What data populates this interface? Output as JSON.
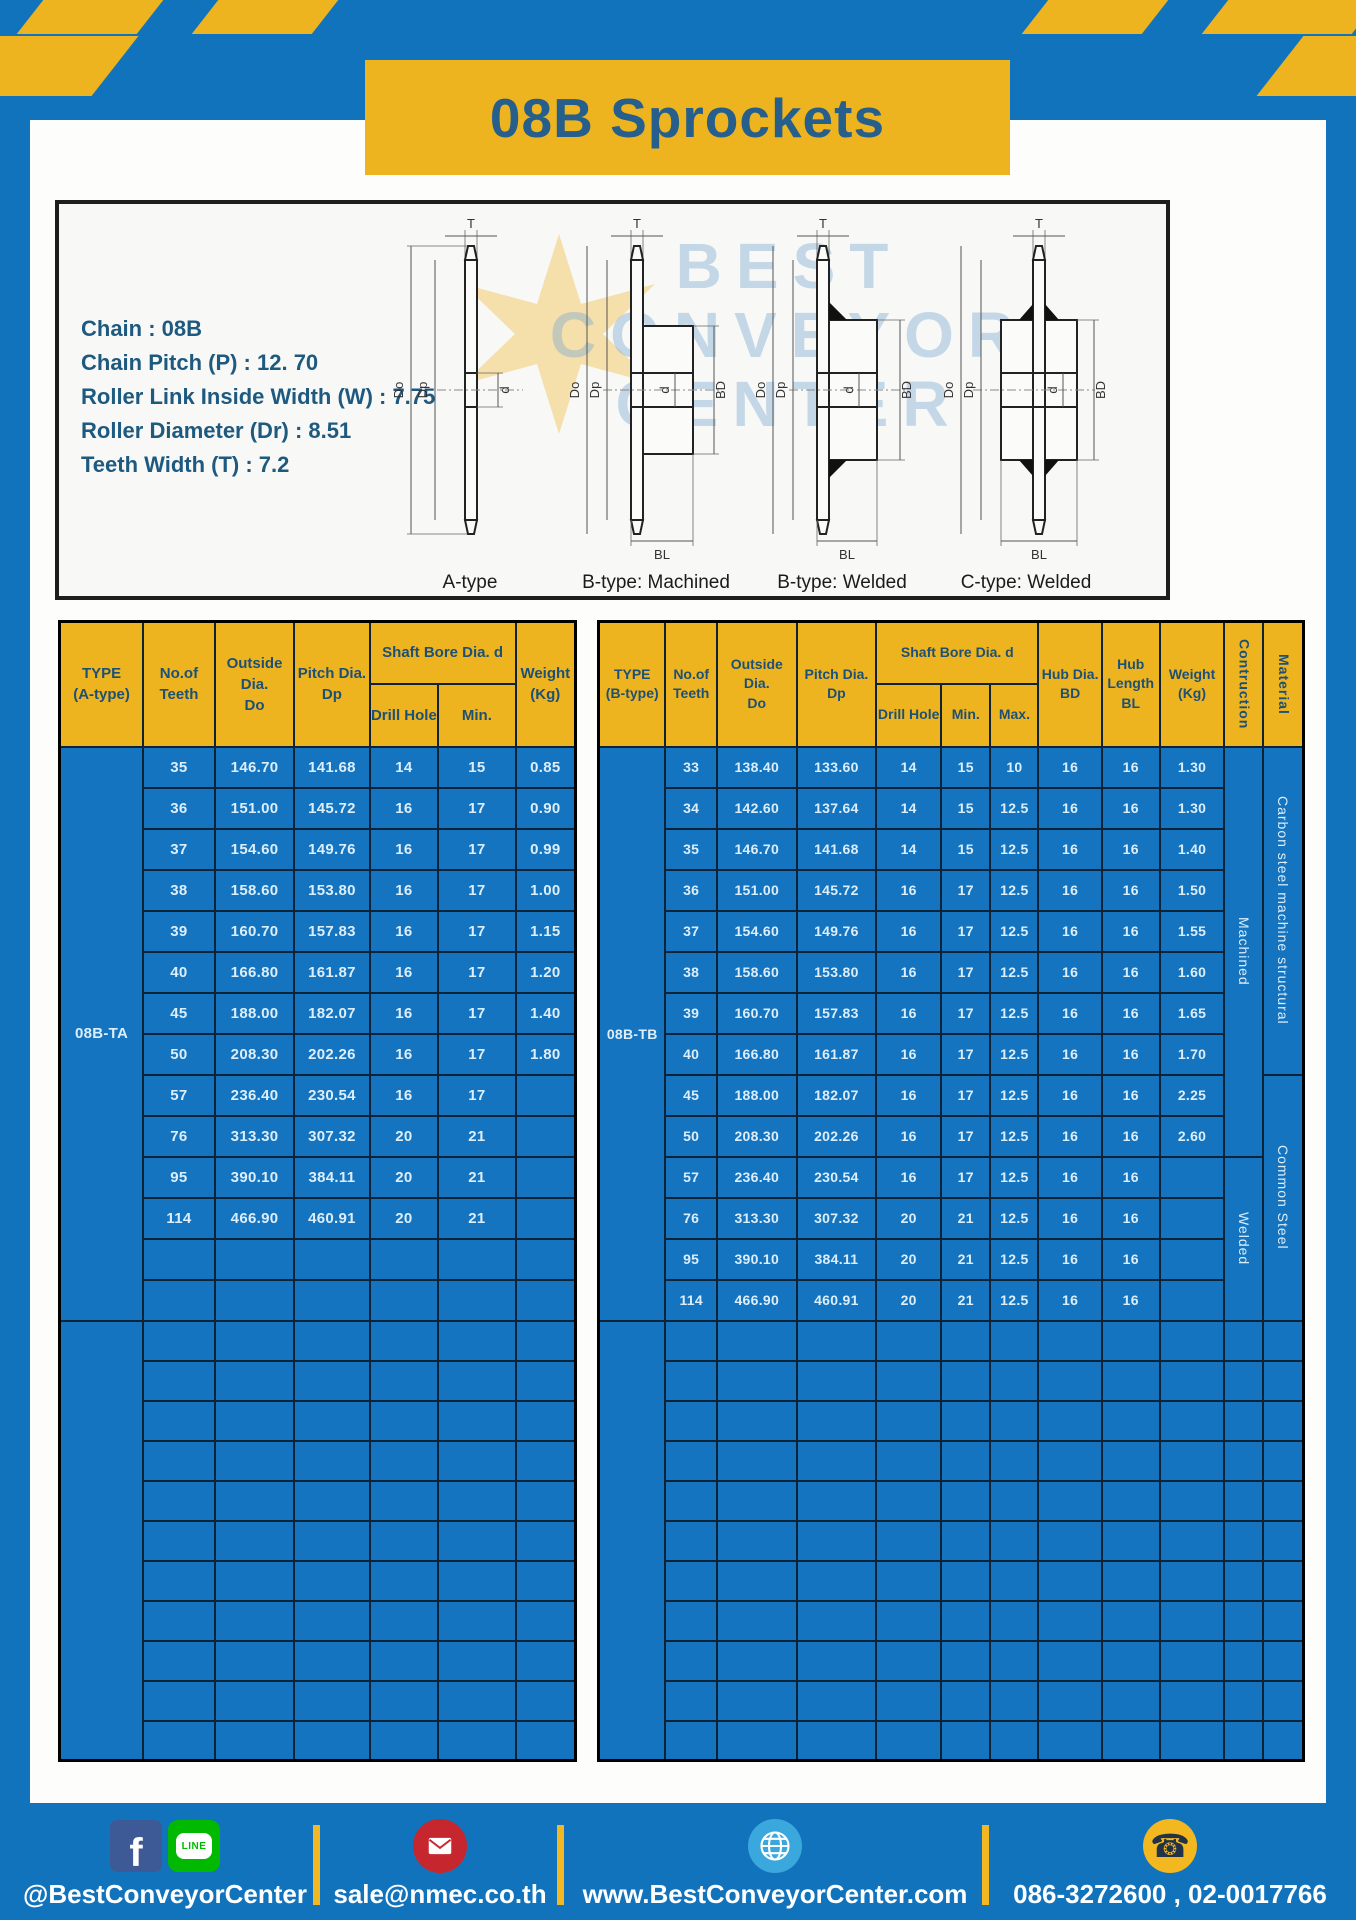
{
  "page": {
    "title": "08B Sprockets"
  },
  "specs": {
    "lines": [
      "Chain : 08B",
      "Chain Pitch (P) : 12. 70",
      "Roller Link Inside Width (W) : 7.75",
      "Roller Diameter (Dr) : 8.51",
      "Teeth Width (T) : 7.2"
    ]
  },
  "diagram": {
    "watermark": [
      "BEST",
      "CONVEYOR",
      "CENTER"
    ],
    "dims": {
      "t": "T",
      "do": "Do",
      "dp": "Dp",
      "d": "d",
      "bd": "BD",
      "bl": "BL"
    },
    "captions": [
      "A-type",
      "B-type: Machined",
      "B-type: Welded",
      "C-type: Welded"
    ]
  },
  "table_a": {
    "headers": {
      "type": "TYPE\n(A-type)",
      "teeth": "No.of\nTeeth",
      "outside": "Outside\nDia.\nDo",
      "pitch": "Pitch Dia.\nDp",
      "shaft_group": "Shaft Bore Dia. d",
      "drill": "Drill Hole",
      "min": "Min.",
      "weight": "Weight\n(Kg)"
    },
    "type_label": "08B-TA",
    "rows": [
      [
        "35",
        "146.70",
        "141.68",
        "14",
        "15",
        "0.85"
      ],
      [
        "36",
        "151.00",
        "145.72",
        "16",
        "17",
        "0.90"
      ],
      [
        "37",
        "154.60",
        "149.76",
        "16",
        "17",
        "0.99"
      ],
      [
        "38",
        "158.60",
        "153.80",
        "16",
        "17",
        "1.00"
      ],
      [
        "39",
        "160.70",
        "157.83",
        "16",
        "17",
        "1.15"
      ],
      [
        "40",
        "166.80",
        "161.87",
        "16",
        "17",
        "1.20"
      ],
      [
        "45",
        "188.00",
        "182.07",
        "16",
        "17",
        "1.40"
      ],
      [
        "50",
        "208.30",
        "202.26",
        "16",
        "17",
        "1.80"
      ],
      [
        "57",
        "236.40",
        "230.54",
        "16",
        "17",
        ""
      ],
      [
        "76",
        "313.30",
        "307.32",
        "20",
        "21",
        ""
      ],
      [
        "95",
        "390.10",
        "384.11",
        "20",
        "21",
        ""
      ],
      [
        "114",
        "466.90",
        "460.91",
        "20",
        "21",
        ""
      ]
    ],
    "empty_main_rows": 2,
    "empty_bottom_rows": 11
  },
  "table_b": {
    "headers": {
      "type": "TYPE\n(B-type)",
      "teeth": "No.of\nTeeth",
      "outside": "Outside\nDia.\nDo",
      "pitch": "Pitch Dia.\nDp",
      "shaft_group": "Shaft Bore Dia. d",
      "drill": "Drill Hole",
      "min": "Min.",
      "max": "Max.",
      "bd": "Hub Dia.\nBD",
      "bl": "Hub\nLength\nBL",
      "weight": "Weight\n(Kg)",
      "construction": "Contruction",
      "material": "Material"
    },
    "type_label": "08B-TB",
    "rows": [
      [
        "33",
        "138.40",
        "133.60",
        "14",
        "15",
        "10",
        "16",
        "16",
        "1.30"
      ],
      [
        "34",
        "142.60",
        "137.64",
        "14",
        "15",
        "12.5",
        "16",
        "16",
        "1.30"
      ],
      [
        "35",
        "146.70",
        "141.68",
        "14",
        "15",
        "12.5",
        "16",
        "16",
        "1.40"
      ],
      [
        "36",
        "151.00",
        "145.72",
        "16",
        "17",
        "12.5",
        "16",
        "16",
        "1.50"
      ],
      [
        "37",
        "154.60",
        "149.76",
        "16",
        "17",
        "12.5",
        "16",
        "16",
        "1.55"
      ],
      [
        "38",
        "158.60",
        "153.80",
        "16",
        "17",
        "12.5",
        "16",
        "16",
        "1.60"
      ],
      [
        "39",
        "160.70",
        "157.83",
        "16",
        "17",
        "12.5",
        "16",
        "16",
        "1.65"
      ],
      [
        "40",
        "166.80",
        "161.87",
        "16",
        "17",
        "12.5",
        "16",
        "16",
        "1.70"
      ],
      [
        "45",
        "188.00",
        "182.07",
        "16",
        "17",
        "12.5",
        "16",
        "16",
        "2.25"
      ],
      [
        "50",
        "208.30",
        "202.26",
        "16",
        "17",
        "12.5",
        "16",
        "16",
        "2.60"
      ],
      [
        "57",
        "236.40",
        "230.54",
        "16",
        "17",
        "12.5",
        "16",
        "16",
        ""
      ],
      [
        "76",
        "313.30",
        "307.32",
        "20",
        "21",
        "12.5",
        "16",
        "16",
        ""
      ],
      [
        "95",
        "390.10",
        "384.11",
        "20",
        "21",
        "12.5",
        "16",
        "16",
        ""
      ],
      [
        "114",
        "466.90",
        "460.91",
        "20",
        "21",
        "12.5",
        "16",
        "16",
        ""
      ]
    ],
    "construction_groups": [
      {
        "label": "Machined",
        "span": 10
      },
      {
        "label": "Welded",
        "span": 4
      }
    ],
    "material_groups": [
      {
        "label": "Carbon steel  machine structural",
        "span": 8
      },
      {
        "label": "Common Steel",
        "span": 6
      }
    ],
    "empty_bottom_rows": 11
  },
  "footer": {
    "groups": [
      {
        "label": "@BestConveyorCenter",
        "icons": [
          "facebook-icon",
          "line-icon"
        ]
      },
      {
        "label": "sale@nmec.co.th",
        "icons": [
          "email-icon"
        ]
      },
      {
        "label": "www.BestConveyorCenter.com",
        "icons": [
          "globe-icon"
        ]
      },
      {
        "label": "086-3272600 , 02-0017766",
        "icons": [
          "phone-icon"
        ]
      }
    ],
    "glyphs": {
      "facebook": "f",
      "line": "LINE",
      "phone": "☎"
    }
  }
}
